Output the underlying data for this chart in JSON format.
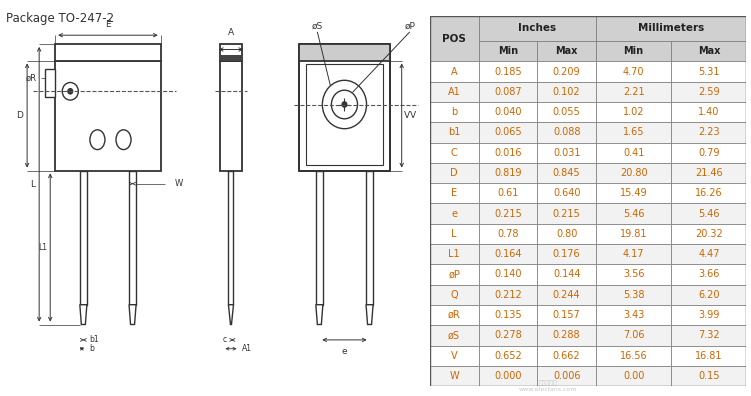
{
  "title": "Package TO-247-2",
  "title_color": "#333333",
  "text_color": "#cc6600",
  "black": "#000000",
  "diagram_color": "#333333",
  "pos_col": "POS",
  "inches_label": "Inches",
  "mm_label": "Millimeters",
  "col_headers": [
    "Min",
    "Max",
    "Min",
    "Max"
  ],
  "rows": [
    [
      "A",
      "0.185",
      "0.209",
      "4.70",
      "5.31"
    ],
    [
      "A1",
      "0.087",
      "0.102",
      "2.21",
      "2.59"
    ],
    [
      "b",
      "0.040",
      "0.055",
      "1.02",
      "1.40"
    ],
    [
      "b1",
      "0.065",
      "0.088",
      "1.65",
      "2.23"
    ],
    [
      "C",
      "0.016",
      "0.031",
      "0.41",
      "0.79"
    ],
    [
      "D",
      "0.819",
      "0.845",
      "20.80",
      "21.46"
    ],
    [
      "E",
      "0.61",
      "0.640",
      "15.49",
      "16.26"
    ],
    [
      "e",
      "0.215",
      "0.215",
      "5.46",
      "5.46"
    ],
    [
      "L",
      "0.78",
      "0.80",
      "19.81",
      "20.32"
    ],
    [
      "L1",
      "0.164",
      "0.176",
      "4.17",
      "4.47"
    ],
    [
      "øP",
      "0.140",
      "0.144",
      "3.56",
      "3.66"
    ],
    [
      "Q",
      "0.212",
      "0.244",
      "5.38",
      "6.20"
    ],
    [
      "øR",
      "0.135",
      "0.157",
      "3.43",
      "3.99"
    ],
    [
      "øS",
      "0.278",
      "0.288",
      "7.06",
      "7.32"
    ],
    [
      "V",
      "0.652",
      "0.662",
      "16.56",
      "16.81"
    ],
    [
      "W",
      "0.000",
      "0.006",
      "0.00",
      "0.15"
    ]
  ],
  "fig_w": 7.51,
  "fig_h": 3.96,
  "dpi": 100
}
